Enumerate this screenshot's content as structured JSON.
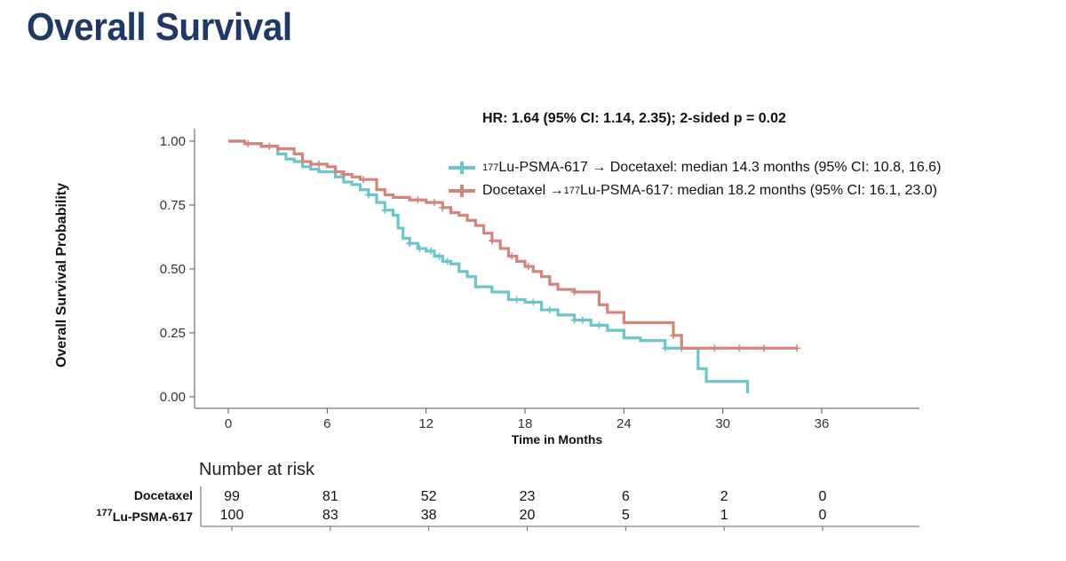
{
  "slide": {
    "title": "Overall Survival"
  },
  "chart_data": {
    "type": "line",
    "subtype": "kaplan-meier",
    "annotation": "HR: 1.64 (95% CI: 1.14, 2.35); 2-sided p = 0.02",
    "xlabel": "Time in Months",
    "ylabel": "Overall Survival Probability",
    "xlim": [
      0,
      36
    ],
    "ylim": [
      0,
      1
    ],
    "xticks": [
      0,
      6,
      12,
      18,
      24,
      30,
      36
    ],
    "yticks": [
      {
        "value": 0.0,
        "label": "0.00"
      },
      {
        "value": 0.25,
        "label": "0.25"
      },
      {
        "value": 0.5,
        "label": "0.50"
      },
      {
        "value": 0.75,
        "label": "0.75"
      },
      {
        "value": 1.0,
        "label": "1.00"
      }
    ],
    "legend_position": "top-right",
    "series": [
      {
        "legend_sup": "177",
        "legend_text": "Lu-PSMA-617 → Docetaxel: median 14.3 months (95% CI: 10.8, 16.6)",
        "color": "#6cc5c9",
        "x": [
          0,
          1,
          2,
          3,
          3.5,
          4,
          4.5,
          5,
          5.5,
          6,
          6.5,
          7,
          7.5,
          8,
          8.5,
          9,
          9.5,
          10,
          10.3,
          10.6,
          11,
          11.5,
          12,
          12.5,
          13,
          13.5,
          14,
          14.5,
          15,
          16,
          17,
          18,
          19,
          20,
          21,
          22,
          23,
          24,
          25,
          26,
          26.5,
          27,
          28,
          28.5,
          29,
          31,
          31.5,
          31.6
        ],
        "y": [
          1.0,
          0.99,
          0.98,
          0.95,
          0.93,
          0.92,
          0.9,
          0.89,
          0.88,
          0.88,
          0.86,
          0.84,
          0.83,
          0.81,
          0.79,
          0.76,
          0.73,
          0.71,
          0.66,
          0.62,
          0.6,
          0.58,
          0.57,
          0.55,
          0.53,
          0.52,
          0.49,
          0.47,
          0.43,
          0.41,
          0.38,
          0.37,
          0.34,
          0.32,
          0.3,
          0.28,
          0.26,
          0.23,
          0.22,
          0.22,
          0.19,
          0.19,
          0.19,
          0.11,
          0.06,
          0.06,
          0.02,
          0.02
        ],
        "censor_x": [
          8.5,
          9.5,
          11,
          11.6,
          12.3,
          12.8,
          13.3,
          17.5,
          18.5,
          19.5,
          21,
          21.5,
          22.5,
          26.5,
          27.5
        ]
      },
      {
        "legend_sup": "177",
        "legend_text": "Docetaxel → Lu-PSMA-617: median 18.2 months (95% CI: 16.1, 23.0)",
        "legend_pre": "Docetaxel → ",
        "legend_post": "Lu-PSMA-617: median 18.2 months (95% CI: 16.1, 23.0)",
        "color": "#d4857a",
        "x": [
          0,
          1,
          2,
          3,
          4,
          4.5,
          5,
          6,
          6.5,
          7,
          7.5,
          8,
          9,
          9.5,
          10,
          11,
          12,
          13,
          13.5,
          14,
          14.5,
          15,
          15.5,
          16,
          16.5,
          17,
          17.5,
          18,
          18.5,
          19,
          19.5,
          20,
          21,
          22,
          22.5,
          23,
          24,
          25,
          26,
          27,
          27.5,
          28,
          34.5
        ],
        "y": [
          1.0,
          0.99,
          0.98,
          0.97,
          0.95,
          0.92,
          0.91,
          0.9,
          0.88,
          0.87,
          0.86,
          0.85,
          0.81,
          0.79,
          0.78,
          0.77,
          0.76,
          0.74,
          0.72,
          0.71,
          0.69,
          0.67,
          0.64,
          0.61,
          0.58,
          0.55,
          0.53,
          0.51,
          0.49,
          0.47,
          0.44,
          0.42,
          0.41,
          0.41,
          0.36,
          0.33,
          0.29,
          0.29,
          0.29,
          0.24,
          0.19,
          0.19,
          0.19
        ],
        "censor_x": [
          1.2,
          2.5,
          5.5,
          7,
          8.2,
          11.5,
          12.5,
          13,
          16,
          17.2,
          18.2,
          21,
          27,
          29.5,
          31,
          32.5,
          34.5
        ]
      }
    ],
    "risk_table": {
      "title": "Number at risk",
      "times": [
        0,
        6,
        12,
        18,
        24,
        30,
        36
      ],
      "rows": [
        {
          "label": "Docetaxel",
          "values": [
            "99",
            "81",
            "52",
            "23",
            "6",
            "2",
            "0"
          ]
        },
        {
          "label_sup": "177",
          "label": "Lu-PSMA-617",
          "values": [
            "100",
            "83",
            "38",
            "20",
            "5",
            "1",
            "0"
          ]
        }
      ]
    }
  }
}
